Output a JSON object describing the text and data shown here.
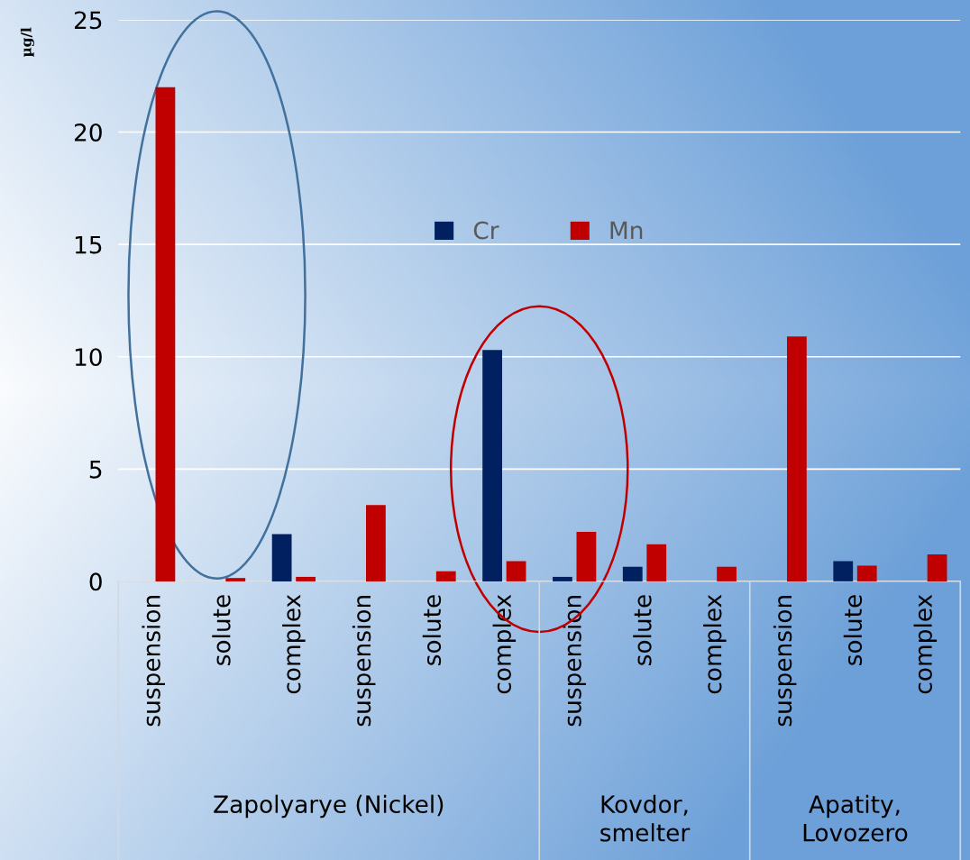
{
  "chart_data": {
    "type": "bar",
    "ylabel": "µg/l",
    "categories": [
      "suspension",
      "solute",
      "complex",
      "suspension",
      "solute",
      "complex",
      "suspension",
      "solute",
      "complex",
      "suspension",
      "solute",
      "complex"
    ],
    "series": [
      {
        "name": "Cr",
        "color": "#002060",
        "values": [
          null,
          null,
          2.1,
          null,
          null,
          10.3,
          0.2,
          0.65,
          null,
          null,
          0.9,
          null
        ]
      },
      {
        "name": "Mn",
        "color": "#c00000",
        "values": [
          22,
          0.15,
          0.2,
          3.4,
          0.45,
          0.9,
          2.2,
          1.65,
          0.65,
          10.9,
          0.7,
          1.2
        ]
      }
    ],
    "annotations": [
      "Zapolyarye (Nickel)",
      "Kovdor,\nsmelter",
      "Apatity,\nLovozero"
    ],
    "ylim": [
      0,
      25
    ],
    "yticks": [
      0,
      5,
      10,
      15,
      20,
      25
    ],
    "grid": "y",
    "legend": "top"
  }
}
